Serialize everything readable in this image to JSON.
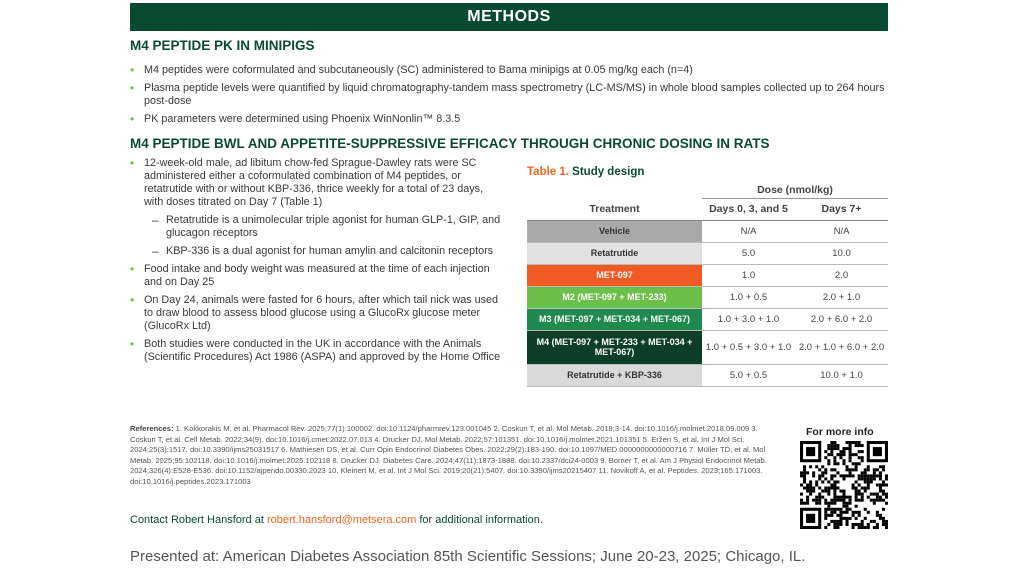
{
  "header": "METHODS",
  "section1": {
    "title": "M4 PEPTIDE PK IN MINIPIGS",
    "bullets": [
      "M4 peptides were coformulated and subcutaneously (SC) administered to Bama minipigs at 0.05 mg/kg each (n=4)",
      "Plasma peptide levels were quantified by liquid chromatography-tandem mass spectrometry (LC-MS/MS) in whole blood samples collected up to 264 hours post-dose",
      "PK parameters were determined using Phoenix WinNonlin™ 8.3.5"
    ]
  },
  "section2": {
    "title": "M4 PEPTIDE BWL AND APPETITE-SUPPRESSIVE EFFICACY THROUGH CHRONIC DOSING IN RATS",
    "b1": "12-week-old male, ad libitum chow-fed Sprague-Dawley rats were SC administered either a coformulated combination of M4 peptides, or retatrutide with or without KBP-336, thrice weekly for a total of 23 days, with doses titrated on Day 7 (Table 1)",
    "s1": "Retatrutide is a unimolecular triple agonist for human GLP-1, GIP, and glucagon receptors",
    "s2": "KBP-336 is a dual agonist for human amylin and calcitonin receptors",
    "b2": "Food intake and body weight was measured at the time of each injection and on Day 25",
    "b3": "On Day 24, animals were fasted for 6 hours, after which tail nick was used to draw blood to assess blood glucose using a GlucoRx glucose meter (GlucoRx Ltd)",
    "b4": "Both studies were conducted in the UK in accordance with the Animals (Scientific Procedures) Act 1986 (ASPA) and approved by the Home Office"
  },
  "table": {
    "caption_num": "Table 1.",
    "caption": "Study design",
    "dose_header": "Dose (nmol/kg)",
    "col_treatment": "Treatment",
    "col_a": "Days 0, 3, and 5",
    "col_b": "Days 7+",
    "rows": [
      {
        "t": "Vehicle",
        "a": "N/A",
        "b": "N/A",
        "bg": "#a9a9a9",
        "fg": "#333"
      },
      {
        "t": "Retatrutide",
        "a": "5.0",
        "b": "10.0",
        "bg": "#e2e2e2",
        "fg": "#333"
      },
      {
        "t": "MET-097",
        "a": "1.0",
        "b": "2.0",
        "bg": "#f15a22",
        "fg": "#fff"
      },
      {
        "t": "M2 (MET-097 + MET-233)",
        "a": "1.0 + 0.5",
        "b": "2.0 + 1.0",
        "bg": "#6cc04a",
        "fg": "#fff"
      },
      {
        "t": "M3 (MET-097 + MET-034 + MET-067)",
        "a": "1.0 + 3.0 + 1.0",
        "b": "2.0 + 6.0 + 2.0",
        "bg": "#1e8a4f",
        "fg": "#fff"
      },
      {
        "t": "M4 (MET-097 + MET-233 + MET-034 + MET-067)",
        "a": "1.0 + 0.5 + 3.0 + 1.0",
        "b": "2.0 + 1.0 + 6.0 + 2.0",
        "bg": "#0d3f28",
        "fg": "#fff"
      },
      {
        "t": "Retatrutide + KBP-336",
        "a": "5.0 + 0.5",
        "b": "10.0 + 1.0",
        "bg": "#d9d9d9",
        "fg": "#333"
      }
    ]
  },
  "references_label": "References:",
  "references": "1. Kokkorakis M, et al. Pharmacol Rev. 2025;77(1):100002. doi:10.1124/pharmrev.123.001045 2. Coskun T, et al. Mol Metab. 2018;3-14. doi:10.1016/j.molmet.2018.09.009 3. Coskun T, et al. Cell Metab. 2022;34(9). doi:10.1016/j.cmet.2022.07.013 4. Drucker DJ. Mol Metab. 2022;57:101351. doi:10.1016/j.molmet.2021.101351 5. Eržen S, et al. Int J Mol Sci. 2024;25(3):1517. doi:10.3390/ijms25031517 6. Mathiesen DS, et al. Curr Opin Endocrinol Diabetes Obes. 2022;29(2):183-190. doi:10.1097/MED.0000000000000716 7. Müller TD, et al. Mol Metab. 2025;95:102118. doi:10.1016/j.molmet.2025.102118 8. Drucker DJ. Diabetes Care. 2024;47(11):1873-1888. doi:10.2337/dci24-0003 9. Borner T, et al. Am J Physiol Endocrinol Metab. 2024;326(4):E528-E536. doi:10.1152/ajpendo.00330.2023 10. Kleinert M, et al. Int J Mol Sci. 2019;20(21):5407. doi:10.3390/ijms20215407 11. Novikoff A, et al. Peptides. 2023;165:171003. doi:10.1016/j.peptides.2023.171003",
  "qr_label": "For more info",
  "contact": {
    "pre": "Contact Robert Hansford at",
    "email": "robert.hansford@metsera.com",
    "post": "for additional information."
  },
  "presented": "Presented at: American Diabetes Association 85th Scientific Sessions; June 20-23, 2025; Chicago, IL."
}
